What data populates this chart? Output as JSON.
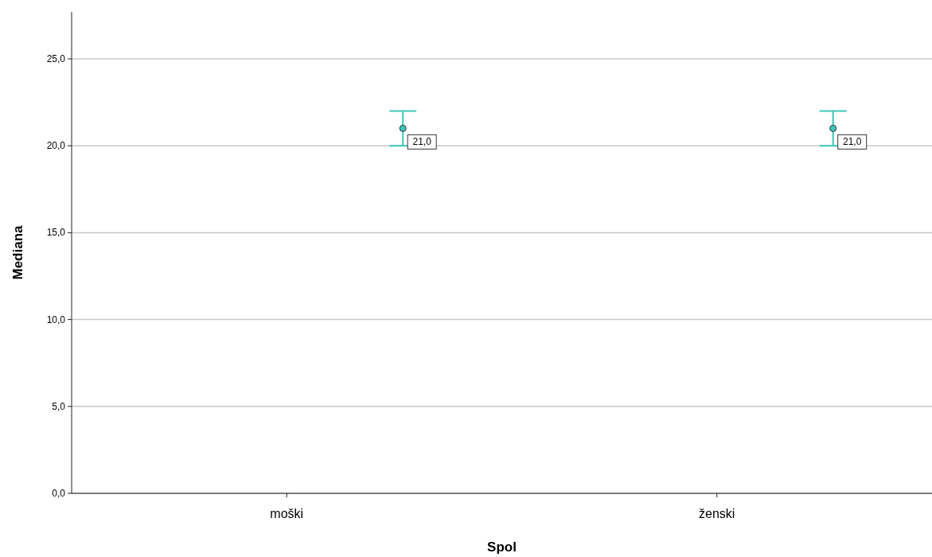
{
  "chart_data": {
    "type": "scatter",
    "xlabel": "Spol",
    "ylabel": "Mediana",
    "categories": [
      "moški",
      "ženski"
    ],
    "series": [
      {
        "color": "#3cc8bc",
        "values": [
          21,
          21
        ],
        "errors": [
          [
            20,
            22
          ],
          [
            20,
            22
          ]
        ],
        "value_labels": [
          "21,0",
          "21,0"
        ]
      }
    ],
    "ylim": [
      0,
      27.7
    ],
    "yticks": [
      {
        "value": 0,
        "label": "0,0"
      },
      {
        "value": 5,
        "label": "5,0"
      },
      {
        "value": 10,
        "label": "10,0"
      },
      {
        "value": 15,
        "label": "15,0"
      },
      {
        "value": 20,
        "label": "20,0"
      },
      {
        "value": 25,
        "label": "25,0"
      }
    ],
    "grid": "y",
    "marker": "circle"
  }
}
